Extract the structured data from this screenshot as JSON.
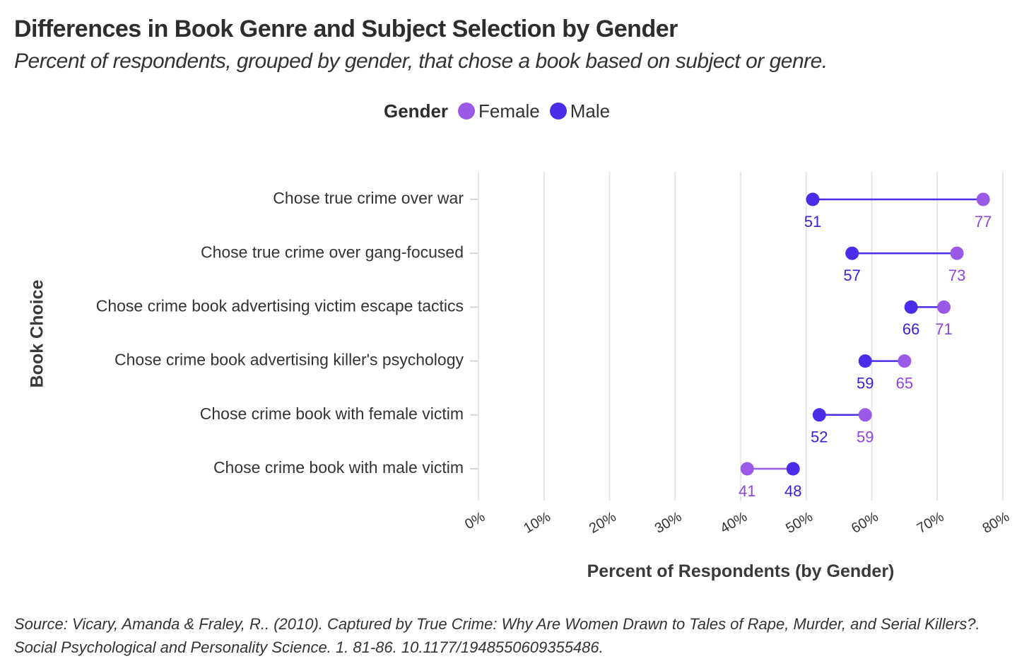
{
  "title": "Differences in Book Genre and Subject Selection by Gender",
  "subtitle": "Percent of respondents, grouped by gender, that chose a book based on subject or genre.",
  "legend": {
    "title": "Gender",
    "items": [
      {
        "label": "Female",
        "color": "#9b59e8"
      },
      {
        "label": "Male",
        "color": "#4a2de8"
      }
    ]
  },
  "source": "Source: Vicary, Amanda & Fraley, R.. (2010). Captured by True Crime: Why Are Women Drawn to Tales of Rape, Murder, and Serial Killers?. Social Psychological and Personality Science. 1. 81-86. 10.1177/1948550609355486.",
  "colors": {
    "female": "#9b59e8",
    "male": "#4a2de8",
    "female_label": "#8e44e0",
    "male_label": "#3a1fd6",
    "grid": "#e6e6e6",
    "axis_text": "#333333"
  },
  "chart_data": {
    "type": "dumbbell",
    "xlabel": "Percent of Respondents (by Gender)",
    "ylabel": "Book Choice",
    "xlim": [
      0,
      80
    ],
    "xticks": [
      {
        "value": 0,
        "label": "0%"
      },
      {
        "value": 10,
        "label": "10%"
      },
      {
        "value": 20,
        "label": "20%"
      },
      {
        "value": 30,
        "label": "30%"
      },
      {
        "value": 40,
        "label": "40%"
      },
      {
        "value": 50,
        "label": "50%"
      },
      {
        "value": 60,
        "label": "60%"
      },
      {
        "value": 70,
        "label": "70%"
      },
      {
        "value": 80,
        "label": "80%"
      }
    ],
    "grid": true,
    "legend_position": "top",
    "categories": [
      "Chose true crime over war",
      "Chose true crime over gang-focused",
      "Chose crime book advertising victim escape tactics",
      "Chose crime book advertising killer's psychology",
      "Chose crime book with female victim",
      "Chose crime book with male victim"
    ],
    "series": [
      {
        "name": "Female",
        "values": [
          77,
          73,
          71,
          65,
          59,
          41
        ]
      },
      {
        "name": "Male",
        "values": [
          51,
          57,
          66,
          59,
          52,
          48
        ]
      }
    ]
  }
}
